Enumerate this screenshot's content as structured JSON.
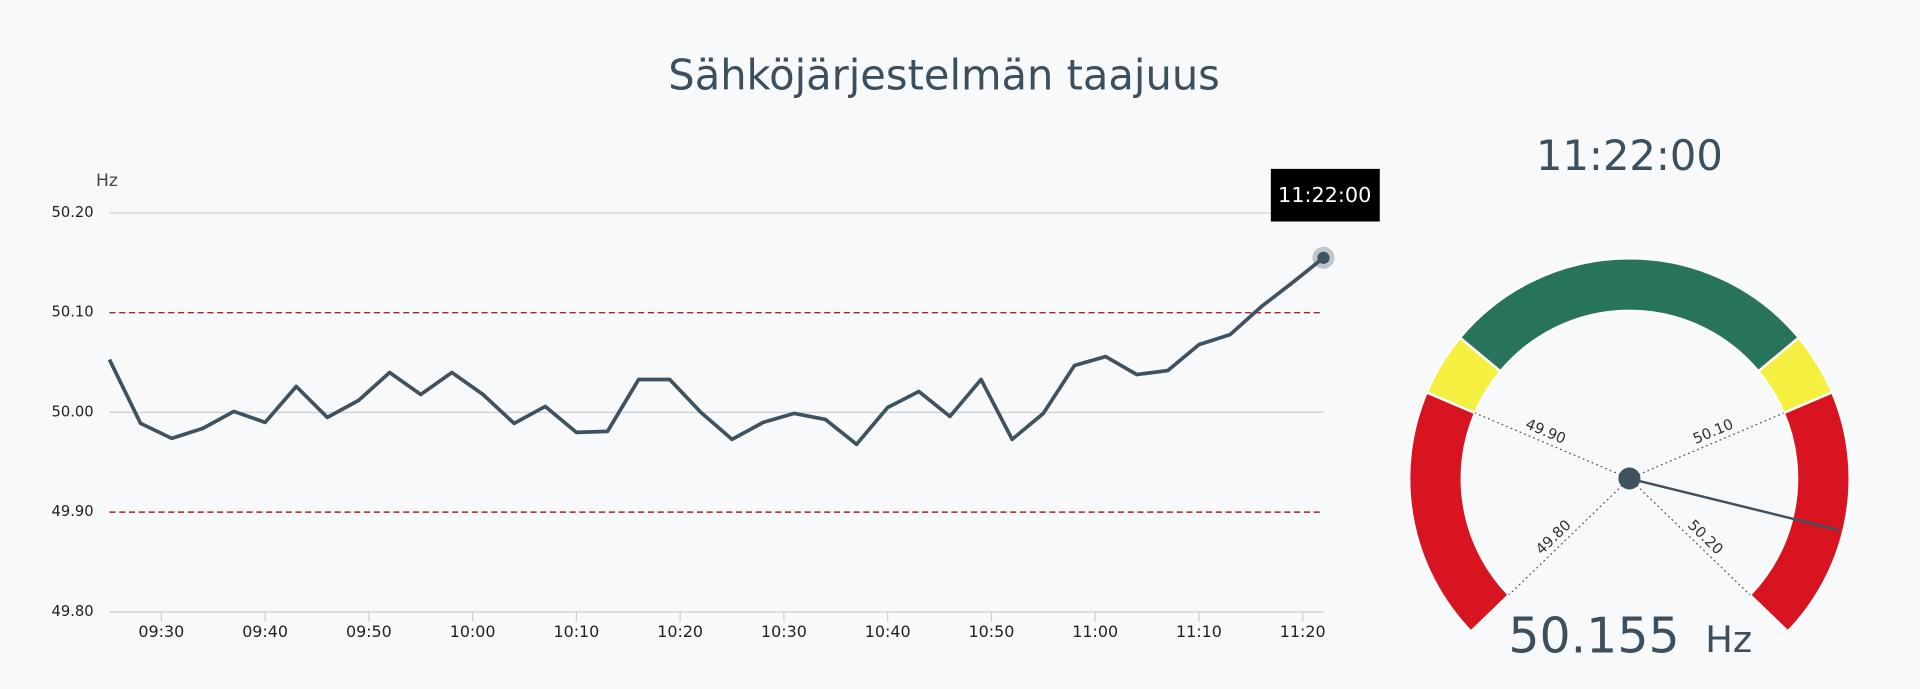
{
  "title": "Sähköjärjestelmän taajuus",
  "chart_data": [
    {
      "type": "line",
      "y_label": "Hz",
      "color": "#3f525f",
      "tooltip": "11:22:00",
      "x": [
        "09:25",
        "09:28",
        "09:31",
        "09:34",
        "09:37",
        "09:40",
        "09:43",
        "09:46",
        "09:49",
        "09:52",
        "09:55",
        "09:58",
        "10:01",
        "10:04",
        "10:07",
        "10:10",
        "10:13",
        "10:16",
        "10:19",
        "10:22",
        "10:25",
        "10:28",
        "10:31",
        "10:34",
        "10:37",
        "10:40",
        "10:43",
        "10:46",
        "10:49",
        "10:52",
        "10:55",
        "10:58",
        "11:01",
        "11:04",
        "11:07",
        "11:10",
        "11:13",
        "11:16",
        "11:19",
        "11:22"
      ],
      "values": [
        50.053,
        49.989,
        49.974,
        49.984,
        50.001,
        49.99,
        50.026,
        49.995,
        50.012,
        50.04,
        50.018,
        50.04,
        50.018,
        49.989,
        50.006,
        49.98,
        49.981,
        50.033,
        50.033,
        50.0,
        49.973,
        49.99,
        49.999,
        49.993,
        49.968,
        50.005,
        50.021,
        49.996,
        50.033,
        49.973,
        49.999,
        50.047,
        50.056,
        50.038,
        50.042,
        50.068,
        50.078,
        50.106,
        50.13,
        50.155
      ],
      "xlim": [
        "09:25",
        "11:22"
      ],
      "xticks": [
        "09:30",
        "09:40",
        "09:50",
        "10:00",
        "10:10",
        "10:20",
        "10:30",
        "10:40",
        "10:50",
        "11:00",
        "11:10",
        "11:20"
      ],
      "ylim": [
        49.8,
        50.2
      ],
      "yticks": [
        {
          "value": 49.8,
          "label": "49.80"
        },
        {
          "value": 49.9,
          "label": "49.90"
        },
        {
          "value": 50.0,
          "label": "50.00"
        },
        {
          "value": 50.1,
          "label": "50.10"
        },
        {
          "value": 50.2,
          "label": "50.20"
        }
      ],
      "thresholds": [
        49.9,
        50.1
      ],
      "threshold_color": "#b22222"
    },
    {
      "type": "gauge",
      "title": "11:22:00",
      "value": 50.155,
      "unit": "Hz",
      "range": [
        49.8,
        50.2
      ],
      "needle_color": "#3f525f",
      "ticks": [
        {
          "value": 49.8,
          "label": "49.80"
        },
        {
          "value": 49.9,
          "label": "49.90"
        },
        {
          "value": 50.1,
          "label": "50.10"
        },
        {
          "value": 50.2,
          "label": "50.20"
        }
      ],
      "bands": [
        {
          "from": 49.8,
          "to": 49.9,
          "color": "#d7141f"
        },
        {
          "from": 49.9,
          "to": 49.925,
          "color": "#f5f03f"
        },
        {
          "from": 49.925,
          "to": 50.075,
          "color": "#27745a"
        },
        {
          "from": 50.075,
          "to": 50.1,
          "color": "#f5f03f"
        },
        {
          "from": 50.1,
          "to": 50.2,
          "color": "#d7141f"
        }
      ]
    }
  ]
}
